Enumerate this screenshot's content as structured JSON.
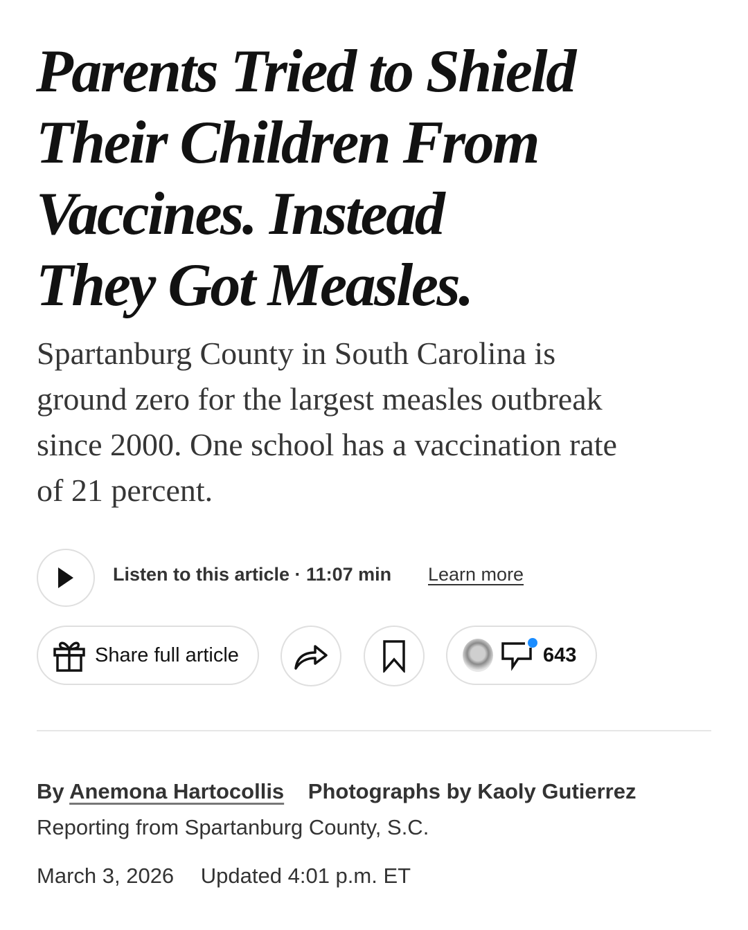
{
  "headline": {
    "lines": [
      "Parents Tried to Shield",
      "Their Children From",
      "Vaccines. Instead",
      "They Got Measles."
    ]
  },
  "summary": {
    "lines": [
      "Spartanburg County in South Carolina is",
      "ground zero for the largest measles outbreak",
      "since 2000. One school has a vaccination rate",
      "of 21 percent."
    ]
  },
  "audio": {
    "label": "Listen to this article · 11:07 min",
    "learn_more": "Learn more",
    "icon": "play-icon"
  },
  "actions": {
    "share_full_article": "Share full article",
    "share_icon": "share-arrow-icon",
    "save_icon": "bookmark-icon",
    "comments_count": "643",
    "comment_badge_color": "#1a8cff"
  },
  "byline": {
    "prefix": "By",
    "author": "Anemona Hartocollis",
    "photographs": "Photographs by Kaoly Gutierrez",
    "reporting": "Reporting from Spartanburg County, S.C."
  },
  "dates": {
    "published": "March 3, 2026",
    "updated": "Updated 4:01 p.m. ET"
  }
}
